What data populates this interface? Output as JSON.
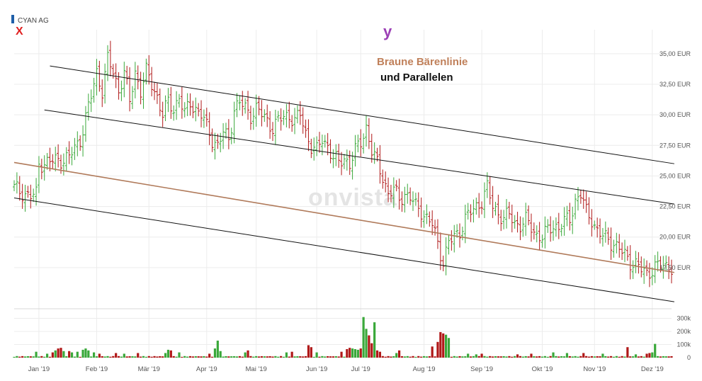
{
  "header": {
    "instrument": "CYAN AG"
  },
  "markers": {
    "x": "X",
    "y": "y"
  },
  "annotation": {
    "line1": "Braune Bärenlinie",
    "line2": "und Parallelen"
  },
  "watermark": "onvista",
  "colors": {
    "up": "#3aa83a",
    "down": "#b01818",
    "grid": "#ececec",
    "bearLine": "#b07a5a",
    "channel": "#111111",
    "legendSquare": "#1f5fa8"
  },
  "chart_data": {
    "type": "ohlc",
    "title": "CYAN AG",
    "ylim": [
      15.0,
      36.5
    ],
    "yticks": [
      17.5,
      20.0,
      22.5,
      25.0,
      27.5,
      30.0,
      32.5,
      35.0
    ],
    "ytick_labels": [
      "17,50 EUR",
      "20,00 EUR",
      "22,50 EUR",
      "25,00 EUR",
      "27,50 EUR",
      "30,00 EUR",
      "32,50 EUR",
      "35,00 EUR"
    ],
    "xticks": [
      "Jan '19",
      "Feb '19",
      "Mär '19",
      "Apr '19",
      "Mai '19",
      "Jun '19",
      "Jul '19",
      "Aug '19",
      "Sep '19",
      "Okt '19",
      "Nov '19",
      "Dez '19"
    ],
    "xtick_index": [
      9,
      30,
      49,
      70,
      88,
      110,
      126,
      149,
      170,
      192,
      211,
      232
    ],
    "grid": true,
    "anchors": [
      [
        0,
        24.0
      ],
      [
        6,
        23.3
      ],
      [
        8,
        23.5
      ],
      [
        9,
        26.0
      ],
      [
        14,
        26.2
      ],
      [
        20,
        26.5
      ],
      [
        24,
        28.0
      ],
      [
        28,
        31.5
      ],
      [
        30,
        33.5
      ],
      [
        32,
        32.0
      ],
      [
        34,
        34.5
      ],
      [
        36,
        33.5
      ],
      [
        38,
        32.0
      ],
      [
        40,
        33.5
      ],
      [
        42,
        31.0
      ],
      [
        44,
        33.5
      ],
      [
        46,
        32.0
      ],
      [
        48,
        33.5
      ],
      [
        50,
        32.5
      ],
      [
        52,
        31.5
      ],
      [
        54,
        30.0
      ],
      [
        56,
        31.0
      ],
      [
        58,
        30.5
      ],
      [
        60,
        31.5
      ],
      [
        62,
        30.0
      ],
      [
        64,
        31.0
      ],
      [
        66,
        30.5
      ],
      [
        68,
        30.0
      ],
      [
        72,
        28.0
      ],
      [
        74,
        27.5
      ],
      [
        76,
        28.5
      ],
      [
        78,
        28.0
      ],
      [
        80,
        30.5
      ],
      [
        82,
        31.0
      ],
      [
        84,
        30.5
      ],
      [
        86,
        30.0
      ],
      [
        88,
        30.5
      ],
      [
        90,
        30.0
      ],
      [
        92,
        29.5
      ],
      [
        94,
        29.0
      ],
      [
        96,
        29.5
      ],
      [
        98,
        29.8
      ],
      [
        100,
        30.0
      ],
      [
        102,
        29.5
      ],
      [
        104,
        30.0
      ],
      [
        106,
        28.5
      ],
      [
        108,
        27.5
      ],
      [
        110,
        27.0
      ],
      [
        112,
        28.0
      ],
      [
        114,
        27.5
      ],
      [
        116,
        26.5
      ],
      [
        118,
        26.0
      ],
      [
        120,
        26.5
      ],
      [
        122,
        26.0
      ],
      [
        124,
        27.0
      ],
      [
        126,
        27.8
      ],
      [
        128,
        29.0
      ],
      [
        130,
        27.0
      ],
      [
        132,
        26.0
      ],
      [
        134,
        25.0
      ],
      [
        136,
        23.5
      ],
      [
        138,
        23.8
      ],
      [
        140,
        23.2
      ],
      [
        142,
        23.5
      ],
      [
        144,
        23.2
      ],
      [
        146,
        22.5
      ],
      [
        148,
        22.2
      ],
      [
        150,
        21.5
      ],
      [
        152,
        21.0
      ],
      [
        154,
        19.5
      ],
      [
        156,
        18.0
      ],
      [
        158,
        19.5
      ],
      [
        160,
        20.0
      ],
      [
        162,
        20.5
      ],
      [
        164,
        21.5
      ],
      [
        166,
        22.0
      ],
      [
        168,
        22.5
      ],
      [
        170,
        23.0
      ],
      [
        172,
        24.0
      ],
      [
        174,
        22.5
      ],
      [
        176,
        22.0
      ],
      [
        178,
        21.5
      ],
      [
        180,
        21.8
      ],
      [
        182,
        21.2
      ],
      [
        184,
        21.0
      ],
      [
        186,
        21.3
      ],
      [
        188,
        20.8
      ],
      [
        190,
        20.2
      ],
      [
        192,
        20.0
      ],
      [
        194,
        20.5
      ],
      [
        196,
        21.0
      ],
      [
        198,
        20.8
      ],
      [
        200,
        21.2
      ],
      [
        202,
        21.5
      ],
      [
        204,
        23.0
      ],
      [
        206,
        23.5
      ],
      [
        208,
        22.0
      ],
      [
        210,
        21.5
      ],
      [
        212,
        20.5
      ],
      [
        214,
        20.0
      ],
      [
        216,
        19.8
      ],
      [
        218,
        19.5
      ],
      [
        220,
        19.0
      ],
      [
        222,
        18.5
      ],
      [
        224,
        18.0
      ],
      [
        226,
        17.8
      ],
      [
        228,
        17.3
      ],
      [
        230,
        17.0
      ],
      [
        232,
        17.4
      ],
      [
        233,
        17.6
      ]
    ],
    "volume": {
      "ylim": [
        0,
        330000
      ],
      "yticks": [
        0,
        100000,
        200000,
        300000
      ],
      "ytick_labels": [
        "0",
        "100k",
        "200k",
        "300k"
      ],
      "spikes": [
        [
          8,
          45000
        ],
        [
          12,
          30000
        ],
        [
          14,
          40000
        ],
        [
          15,
          55000
        ],
        [
          16,
          70000
        ],
        [
          17,
          75000
        ],
        [
          18,
          50000
        ],
        [
          20,
          50000
        ],
        [
          21,
          40000
        ],
        [
          23,
          45000
        ],
        [
          25,
          60000
        ],
        [
          26,
          70000
        ],
        [
          27,
          55000
        ],
        [
          29,
          40000
        ],
        [
          31,
          30000
        ],
        [
          37,
          35000
        ],
        [
          40,
          30000
        ],
        [
          45,
          35000
        ],
        [
          55,
          35000
        ],
        [
          56,
          60000
        ],
        [
          57,
          55000
        ],
        [
          60,
          40000
        ],
        [
          71,
          30000
        ],
        [
          73,
          70000
        ],
        [
          74,
          130000
        ],
        [
          75,
          50000
        ],
        [
          84,
          40000
        ],
        [
          85,
          55000
        ],
        [
          99,
          40000
        ],
        [
          101,
          45000
        ],
        [
          107,
          95000
        ],
        [
          108,
          80000
        ],
        [
          110,
          40000
        ],
        [
          119,
          45000
        ],
        [
          121,
          65000
        ],
        [
          122,
          75000
        ],
        [
          123,
          70000
        ],
        [
          124,
          65000
        ],
        [
          125,
          60000
        ],
        [
          126,
          70000
        ],
        [
          127,
          310000
        ],
        [
          128,
          220000
        ],
        [
          129,
          170000
        ],
        [
          130,
          110000
        ],
        [
          131,
          270000
        ],
        [
          132,
          55000
        ],
        [
          133,
          45000
        ],
        [
          139,
          35000
        ],
        [
          140,
          55000
        ],
        [
          152,
          85000
        ],
        [
          154,
          120000
        ],
        [
          155,
          195000
        ],
        [
          156,
          185000
        ],
        [
          157,
          175000
        ],
        [
          158,
          150000
        ],
        [
          165,
          30000
        ],
        [
          168,
          25000
        ],
        [
          170,
          30000
        ],
        [
          183,
          25000
        ],
        [
          188,
          30000
        ],
        [
          196,
          40000
        ],
        [
          201,
          35000
        ],
        [
          207,
          35000
        ],
        [
          214,
          30000
        ],
        [
          223,
          80000
        ],
        [
          226,
          25000
        ],
        [
          230,
          30000
        ],
        [
          231,
          35000
        ],
        [
          232,
          40000
        ],
        [
          233,
          105000
        ]
      ]
    },
    "lines": {
      "bear_line": [
        [
          0,
          26.1
        ],
        [
          240,
          17.1
        ]
      ],
      "channel_upper": [
        [
          13,
          34.0
        ],
        [
          240,
          26.0
        ]
      ],
      "channel_mid": [
        [
          11,
          30.4
        ],
        [
          240,
          22.7
        ]
      ],
      "channel_lower": [
        [
          0,
          23.2
        ],
        [
          240,
          14.7
        ]
      ]
    }
  }
}
